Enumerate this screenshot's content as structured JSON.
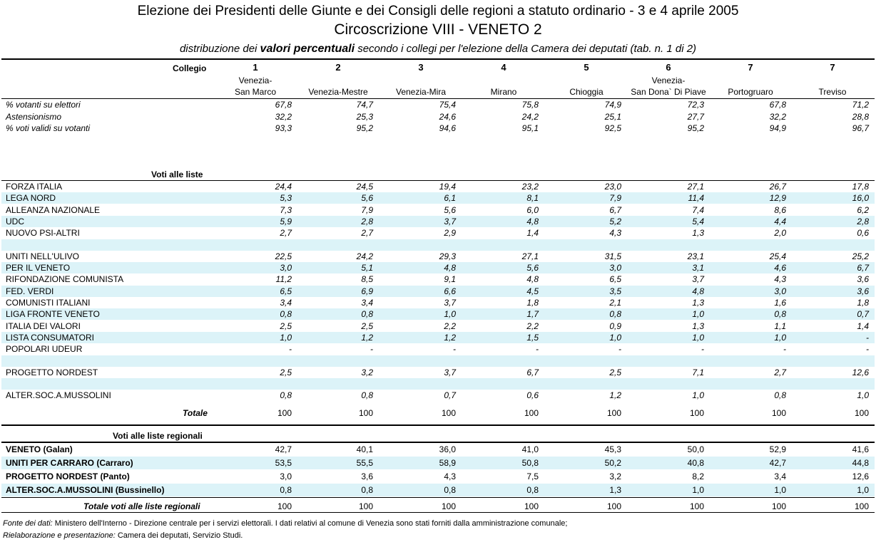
{
  "title_line1": "Elezione dei Presidenti delle Giunte e dei Consigli delle regioni a statuto ordinario - 3 e 4 aprile 2005",
  "title_line2": "Circoscrizione VIII - VENETO 2",
  "title_line3_a": "distribuzione dei ",
  "title_line3_b": "valori percentuali",
  "title_line3_c": " secondo i collegi per l'elezione della Camera dei deputati (tab. n. 1 di 2)",
  "collegio_label": "Collegio",
  "columns": [
    {
      "num": "1",
      "line1": "Venezia-",
      "line2": "San Marco"
    },
    {
      "num": "2",
      "line1": "",
      "line2": "Venezia-Mestre"
    },
    {
      "num": "3",
      "line1": "",
      "line2": "Venezia-Mira"
    },
    {
      "num": "4",
      "line1": "",
      "line2": "Mirano"
    },
    {
      "num": "5",
      "line1": "",
      "line2": "Chioggia"
    },
    {
      "num": "6",
      "line1": "Venezia-",
      "line2": "San Dona` Di Piave"
    },
    {
      "num": "7",
      "line1": "",
      "line2": "Portogruaro"
    },
    {
      "num": "7",
      "line1": "",
      "line2": "Treviso"
    }
  ],
  "stats": [
    {
      "label": "% votanti su elettori",
      "values": [
        "67,8",
        "74,7",
        "75,4",
        "75,8",
        "74,9",
        "72,3",
        "67,8",
        "71,2"
      ]
    },
    {
      "label": "Astensionismo",
      "values": [
        "32,2",
        "25,3",
        "24,6",
        "24,2",
        "25,1",
        "27,7",
        "32,2",
        "28,8"
      ]
    },
    {
      "label": "% voti validi su votanti",
      "values": [
        "93,3",
        "95,2",
        "94,6",
        "95,1",
        "92,5",
        "95,2",
        "94,9",
        "96,7"
      ]
    }
  ],
  "section_liste": "Voti alle liste",
  "liste": [
    {
      "label": "FORZA ITALIA",
      "values": [
        "24,4",
        "24,5",
        "19,4",
        "23,2",
        "23,0",
        "27,1",
        "26,7",
        "17,8"
      ]
    },
    {
      "label": "LEGA NORD",
      "values": [
        "5,3",
        "5,6",
        "6,1",
        "8,1",
        "7,9",
        "11,4",
        "12,9",
        "16,0"
      ]
    },
    {
      "label": "ALLEANZA NAZIONALE",
      "values": [
        "7,3",
        "7,9",
        "5,6",
        "6,0",
        "6,7",
        "7,4",
        "8,6",
        "6,2"
      ]
    },
    {
      "label": "UDC",
      "values": [
        "5,9",
        "2,8",
        "3,7",
        "4,8",
        "5,2",
        "5,4",
        "4,4",
        "2,8"
      ]
    },
    {
      "label": "NUOVO PSI-ALTRI",
      "values": [
        "2,7",
        "2,7",
        "2,9",
        "1,4",
        "4,3",
        "1,3",
        "2,0",
        "0,6"
      ]
    },
    {
      "label": "",
      "values": [
        "",
        "",
        "",
        "",
        "",
        "",
        "",
        ""
      ]
    },
    {
      "label": "UNITI NELL'ULIVO",
      "values": [
        "22,5",
        "24,2",
        "29,3",
        "27,1",
        "31,5",
        "23,1",
        "25,4",
        "25,2"
      ]
    },
    {
      "label": "PER IL VENETO",
      "values": [
        "3,0",
        "5,1",
        "4,8",
        "5,6",
        "3,0",
        "3,1",
        "4,6",
        "6,7"
      ]
    },
    {
      "label": "RIFONDAZIONE COMUNISTA",
      "values": [
        "11,2",
        "8,5",
        "9,1",
        "4,8",
        "6,5",
        "3,7",
        "4,3",
        "3,6"
      ]
    },
    {
      "label": "FED. VERDI",
      "values": [
        "6,5",
        "6,9",
        "6,6",
        "4,5",
        "3,5",
        "4,8",
        "3,0",
        "3,6"
      ]
    },
    {
      "label": "COMUNISTI ITALIANI",
      "values": [
        "3,4",
        "3,4",
        "3,7",
        "1,8",
        "2,1",
        "1,3",
        "1,6",
        "1,8"
      ]
    },
    {
      "label": "LIGA FRONTE VENETO",
      "values": [
        "0,8",
        "0,8",
        "1,0",
        "1,7",
        "0,8",
        "1,0",
        "0,8",
        "0,7"
      ]
    },
    {
      "label": "ITALIA DEI VALORI",
      "values": [
        "2,5",
        "2,5",
        "2,2",
        "2,2",
        "0,9",
        "1,3",
        "1,1",
        "1,4"
      ]
    },
    {
      "label": "LISTA CONSUMATORI",
      "values": [
        "1,0",
        "1,2",
        "1,2",
        "1,5",
        "1,0",
        "1,0",
        "1,0",
        "-"
      ]
    },
    {
      "label": "POPOLARI UDEUR",
      "values": [
        "-",
        "-",
        "-",
        "-",
        "-",
        "-",
        "-",
        "-"
      ]
    },
    {
      "label": "",
      "values": [
        "",
        "",
        "",
        "",
        "",
        "",
        "",
        ""
      ]
    },
    {
      "label": "PROGETTO NORDEST",
      "values": [
        "2,5",
        "3,2",
        "3,7",
        "6,7",
        "2,5",
        "7,1",
        "2,7",
        "12,6"
      ]
    },
    {
      "label": "",
      "values": [
        "",
        "",
        "",
        "",
        "",
        "",
        "",
        ""
      ]
    },
    {
      "label": "ALTER.SOC.A.MUSSOLINI",
      "values": [
        "0,8",
        "0,8",
        "0,7",
        "0,6",
        "1,2",
        "1,0",
        "0,8",
        "1,0"
      ]
    }
  ],
  "totale_label": "Totale",
  "totale_values": [
    "100",
    "100",
    "100",
    "100",
    "100",
    "100",
    "100",
    "100"
  ],
  "section_regionali": "Voti alle liste regionali",
  "regionali": [
    {
      "label": "VENETO (Galan)",
      "values": [
        "42,7",
        "40,1",
        "36,0",
        "41,0",
        "45,3",
        "50,0",
        "52,9",
        "41,6"
      ]
    },
    {
      "label": "UNITI PER CARRARO (Carraro)",
      "values": [
        "53,5",
        "55,5",
        "58,9",
        "50,8",
        "50,2",
        "40,8",
        "42,7",
        "44,8"
      ]
    },
    {
      "label": "PROGETTO NORDEST (Panto)",
      "values": [
        "3,0",
        "3,6",
        "4,3",
        "7,5",
        "3,2",
        "8,2",
        "3,4",
        "12,6"
      ]
    },
    {
      "label": "ALTER.SOC.A.MUSSOLINI (Bussinello)",
      "values": [
        "0,8",
        "0,8",
        "0,8",
        "0,8",
        "1,3",
        "1,0",
        "1,0",
        "1,0"
      ]
    }
  ],
  "totale_regionali_label": "Totale voti alle liste regionali",
  "totale_regionali_values": [
    "100",
    "100",
    "100",
    "100",
    "100",
    "100",
    "100",
    "100"
  ],
  "footer1_label": "Fonte dei dati:",
  "footer1_text": " Ministero dell'Interno - Direzione centrale per i servizi elettorali. I dati relativi al comune di Venezia sono stati forniti dalla amministrazione comunale;",
  "footer2_label": "Rielaborazione e presentazione:",
  "footer2_text": " Camera dei deputati, Servizio Studi.",
  "band_color": "#dcf3f8"
}
